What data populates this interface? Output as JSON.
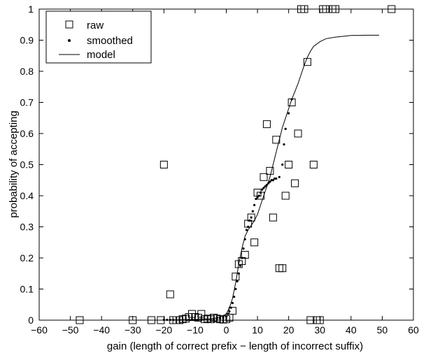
{
  "chart_data": {
    "type": "scatter",
    "xlabel": "gain (length of correct prefix − length of incorrect suffix)",
    "ylabel": "probability of accepting",
    "xlim": [
      -60,
      60
    ],
    "ylim": [
      0,
      1
    ],
    "xticks": [
      -60,
      -50,
      -40,
      -30,
      -20,
      -10,
      0,
      10,
      20,
      30,
      40,
      50,
      60
    ],
    "yticks": [
      0,
      0.1,
      0.2,
      0.3,
      0.4,
      0.5,
      0.6,
      0.7,
      0.8,
      0.9,
      1
    ],
    "xtick_labels": [
      "−60",
      "−50",
      "−40",
      "−30",
      "−20",
      "−10",
      "0",
      "10",
      "20",
      "30",
      "40",
      "50",
      "60"
    ],
    "ytick_labels": [
      "0",
      "0.1",
      "0.2",
      "0.3",
      "0.4",
      "0.5",
      "0.6",
      "0.7",
      "0.8",
      "0.9",
      "1"
    ],
    "grid": false,
    "legend_position": "top-left",
    "series": [
      {
        "name": "raw",
        "marker": "square",
        "points": [
          [
            -47,
            0
          ],
          [
            -30,
            0
          ],
          [
            -24,
            0
          ],
          [
            -21,
            0
          ],
          [
            -20,
            0.5
          ],
          [
            -18,
            0.083
          ],
          [
            -17,
            0
          ],
          [
            -16,
            0
          ],
          [
            -15,
            0
          ],
          [
            -14,
            0.003
          ],
          [
            -13,
            0.005
          ],
          [
            -12,
            0.01
          ],
          [
            -11,
            0.02
          ],
          [
            -10,
            0.01
          ],
          [
            -9,
            0.008
          ],
          [
            -8,
            0.02
          ],
          [
            -7,
            0.003
          ],
          [
            -6,
            0.005
          ],
          [
            -5,
            0.003
          ],
          [
            -4,
            0.008
          ],
          [
            -3,
            0.005
          ],
          [
            -2,
            0.003
          ],
          [
            -1,
            0.002
          ],
          [
            0,
            0.003
          ],
          [
            1,
            0.008
          ],
          [
            2,
            0.03
          ],
          [
            3,
            0.14
          ],
          [
            4,
            0.18
          ],
          [
            5,
            0.19
          ],
          [
            6,
            0.21
          ],
          [
            7,
            0.31
          ],
          [
            8,
            0.33
          ],
          [
            9,
            0.25
          ],
          [
            10,
            0.41
          ],
          [
            11,
            0.4
          ],
          [
            12,
            0.46
          ],
          [
            13,
            0.63
          ],
          [
            14,
            0.48
          ],
          [
            15,
            0.33
          ],
          [
            16,
            0.58
          ],
          [
            17,
            0.167
          ],
          [
            18,
            0.167
          ],
          [
            19,
            0.4
          ],
          [
            20,
            0.5
          ],
          [
            21,
            0.7
          ],
          [
            22,
            0.44
          ],
          [
            23,
            0.6
          ],
          [
            24,
            1
          ],
          [
            25,
            1
          ],
          [
            26,
            0.83
          ],
          [
            27,
            0
          ],
          [
            28,
            0.5
          ],
          [
            29,
            0
          ],
          [
            30,
            0
          ],
          [
            31,
            1
          ],
          [
            32,
            1
          ],
          [
            34,
            1
          ],
          [
            35,
            1
          ],
          [
            53,
            1
          ]
        ]
      },
      {
        "name": "smoothed",
        "marker": "dot",
        "points": [
          [
            -20,
            0.001
          ],
          [
            -19,
            0.001
          ],
          [
            -18,
            0.001
          ],
          [
            -17,
            0.001
          ],
          [
            -16,
            0.001
          ],
          [
            -15,
            0.001
          ],
          [
            -14,
            0.001
          ],
          [
            -13,
            0.001
          ],
          [
            -12,
            0.001
          ],
          [
            -11,
            0.002
          ],
          [
            -10,
            0.002
          ],
          [
            -9,
            0.002
          ],
          [
            -8,
            0.002
          ],
          [
            -7,
            0.003
          ],
          [
            -6,
            0.003
          ],
          [
            -5,
            0.003
          ],
          [
            -4,
            0.004
          ],
          [
            -3,
            0.005
          ],
          [
            -2,
            0.006
          ],
          [
            -1,
            0.008
          ],
          [
            0,
            0.012
          ],
          [
            0.5,
            0.02
          ],
          [
            1,
            0.028
          ],
          [
            1.5,
            0.04
          ],
          [
            2,
            0.055
          ],
          [
            2.5,
            0.075
          ],
          [
            3,
            0.1
          ],
          [
            3.5,
            0.125
          ],
          [
            4,
            0.15
          ],
          [
            4.5,
            0.175
          ],
          [
            5,
            0.2
          ],
          [
            5.5,
            0.23
          ],
          [
            6,
            0.26
          ],
          [
            6.5,
            0.29
          ],
          [
            7,
            0.3
          ],
          [
            7.5,
            0.32
          ],
          [
            8,
            0.33
          ],
          [
            8.5,
            0.35
          ],
          [
            9,
            0.37
          ],
          [
            9.5,
            0.39
          ],
          [
            10,
            0.395
          ],
          [
            10.5,
            0.4
          ],
          [
            11,
            0.41
          ],
          [
            11.5,
            0.42
          ],
          [
            12,
            0.425
          ],
          [
            12.5,
            0.43
          ],
          [
            13,
            0.435
          ],
          [
            13.5,
            0.44
          ],
          [
            14,
            0.445
          ],
          [
            14.5,
            0.45
          ],
          [
            15,
            0.45
          ],
          [
            15.5,
            0.455
          ],
          [
            16,
            0.455
          ],
          [
            17,
            0.46
          ],
          [
            18,
            0.5
          ],
          [
            18.5,
            0.565
          ],
          [
            19,
            0.615
          ],
          [
            20,
            0.665
          ],
          [
            21,
            0.71
          ]
        ]
      },
      {
        "name": "model",
        "marker": "line",
        "points": [
          [
            -20,
            0
          ],
          [
            -15,
            0.001
          ],
          [
            -10,
            0.002
          ],
          [
            -5,
            0.004
          ],
          [
            -2,
            0.01
          ],
          [
            0,
            0.02
          ],
          [
            1,
            0.04
          ],
          [
            2,
            0.07
          ],
          [
            3,
            0.12
          ],
          [
            4,
            0.18
          ],
          [
            5,
            0.23
          ],
          [
            6,
            0.27
          ],
          [
            7,
            0.29
          ],
          [
            8,
            0.305
          ],
          [
            9,
            0.32
          ],
          [
            10,
            0.34
          ],
          [
            11,
            0.37
          ],
          [
            12,
            0.4
          ],
          [
            13,
            0.43
          ],
          [
            14,
            0.46
          ],
          [
            15,
            0.5
          ],
          [
            16,
            0.54
          ],
          [
            17,
            0.58
          ],
          [
            18,
            0.62
          ],
          [
            19,
            0.65
          ],
          [
            20,
            0.68
          ],
          [
            21,
            0.71
          ],
          [
            22,
            0.735
          ],
          [
            23,
            0.76
          ],
          [
            24,
            0.79
          ],
          [
            25,
            0.82
          ],
          [
            26,
            0.845
          ],
          [
            27,
            0.865
          ],
          [
            28,
            0.88
          ],
          [
            30,
            0.895
          ],
          [
            32,
            0.905
          ],
          [
            35,
            0.91
          ],
          [
            40,
            0.915
          ],
          [
            45,
            0.916
          ],
          [
            49,
            0.916
          ]
        ]
      }
    ],
    "legend_labels": [
      "raw",
      "smoothed",
      "model"
    ]
  }
}
